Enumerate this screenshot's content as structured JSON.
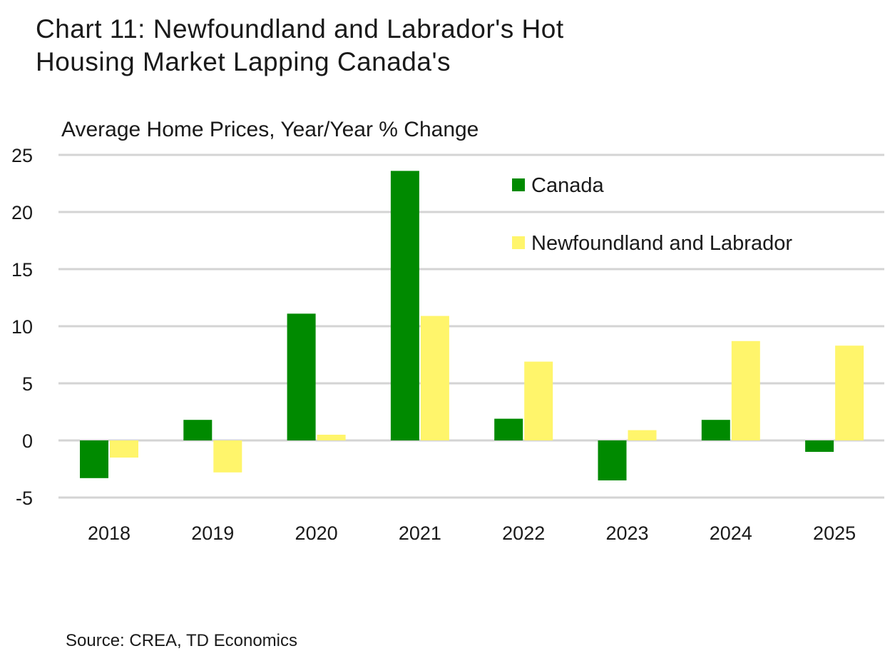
{
  "chart_data": {
    "type": "bar",
    "title": "Chart 11: Newfoundland and Labrador's Hot Housing Market Lapping Canada's",
    "title_lines": [
      "Chart 11: Newfoundland and Labrador's Hot",
      "Housing Market Lapping Canada's"
    ],
    "subtitle": "Average Home Prices, Year/Year % Change",
    "xlabel": "",
    "ylabel": "",
    "categories": [
      "2018",
      "2019",
      "2020",
      "2021",
      "2022",
      "2023",
      "2024",
      "2025"
    ],
    "series": [
      {
        "name": "Canada",
        "color": "#008A00",
        "values": [
          -3.3,
          1.8,
          11.1,
          23.6,
          1.9,
          -3.5,
          1.8,
          -1.0
        ]
      },
      {
        "name": "Newfoundland and Labrador",
        "color": "#FFF56B",
        "values": [
          -1.5,
          -2.8,
          0.5,
          10.9,
          6.9,
          0.9,
          8.7,
          8.3
        ]
      }
    ],
    "ylim": [
      -5,
      25
    ],
    "yticks": [
      25,
      20,
      15,
      10,
      5,
      0,
      -5
    ],
    "grid": true,
    "legend_position": "top-right",
    "source": "Source: CREA, TD Economics"
  }
}
